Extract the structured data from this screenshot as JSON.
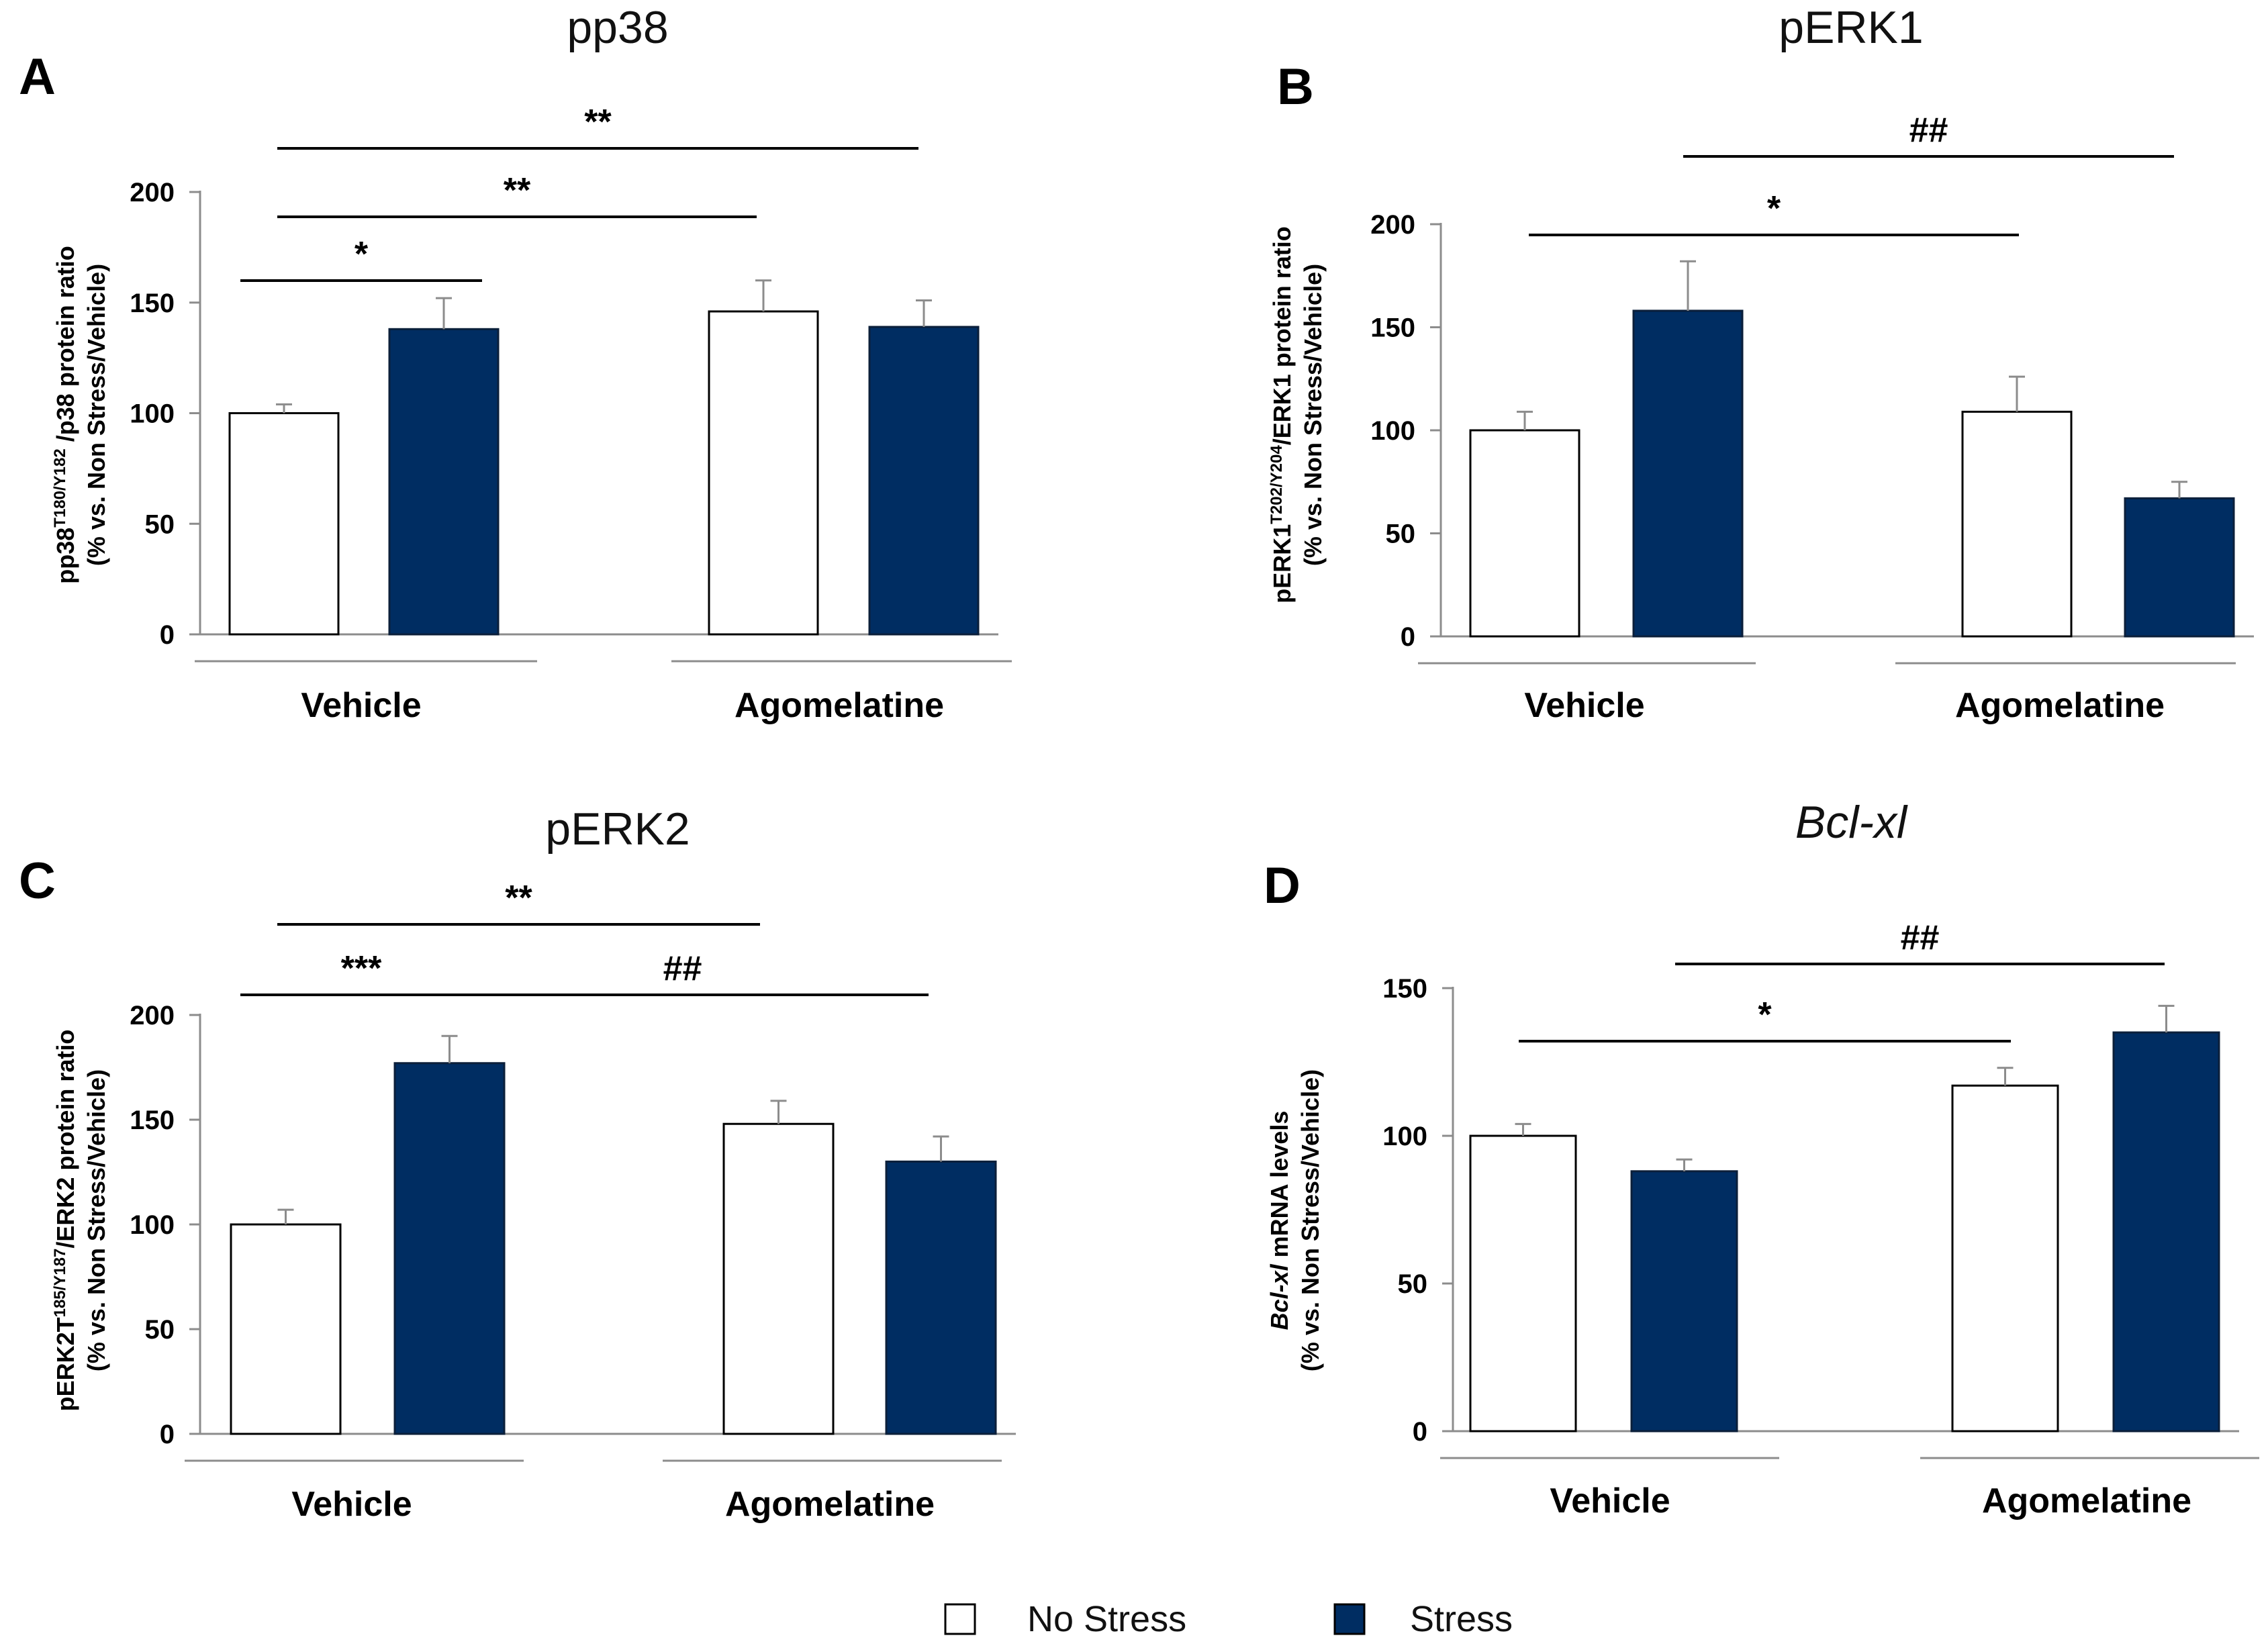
{
  "legend": {
    "items": [
      {
        "label": "No Stress",
        "color": "#ffffff"
      },
      {
        "label": "Stress",
        "color": "#002d62"
      }
    ]
  },
  "chart_data": [
    {
      "type": "bar",
      "letter": "A",
      "title": "pp38",
      "title_italic": false,
      "ylabel_line1_parts": [
        {
          "text": "pp38",
          "sup": false
        },
        {
          "text": "T180/Y182",
          "sup": true
        },
        {
          "text": " /p38 protein ratio",
          "sup": false
        }
      ],
      "ylabel_line2": "(% vs. Non Stress/Vehicle)",
      "categories": [
        "Vehicle",
        "Agomelatine"
      ],
      "series": [
        {
          "name": "No Stress",
          "values": [
            100,
            146
          ],
          "errors": [
            4,
            14
          ]
        },
        {
          "name": "Stress",
          "values": [
            138,
            139
          ],
          "errors": [
            14,
            12
          ]
        }
      ],
      "ylim": [
        0,
        200
      ],
      "yticks": [
        0,
        50,
        100,
        150,
        200
      ],
      "annotations": [
        {
          "label": "*",
          "from_group": 0,
          "from_series": 0,
          "to_group": 0,
          "to_series": 1,
          "level": 1
        },
        {
          "label": "**",
          "from_group": 0,
          "from_series": 0,
          "to_group": 1,
          "to_series": 0,
          "level": 2
        },
        {
          "label": "**",
          "from_group": 0,
          "from_series": 0,
          "to_group": 1,
          "to_series": 1,
          "level": 3
        }
      ]
    },
    {
      "type": "bar",
      "letter": "B",
      "title": "pERK1",
      "title_italic": false,
      "ylabel_line1_parts": [
        {
          "text": "pERK1",
          "sup": false
        },
        {
          "text": "T202/Y204",
          "sup": true
        },
        {
          "text": "/ERK1 protein  ratio",
          "sup": false
        }
      ],
      "ylabel_line2": "(% vs. Non Stress/Vehicle)",
      "categories": [
        "Vehicle",
        "Agomelatine"
      ],
      "series": [
        {
          "name": "No Stress",
          "values": [
            100,
            109
          ],
          "errors": [
            9,
            17
          ]
        },
        {
          "name": "Stress",
          "values": [
            158,
            67
          ],
          "errors": [
            24,
            8
          ]
        }
      ],
      "ylim": [
        0,
        200
      ],
      "yticks": [
        0,
        50,
        100,
        150,
        200
      ],
      "annotations": [
        {
          "label": "*",
          "from_group": 0,
          "from_series": 0,
          "to_group": 1,
          "to_series": 0,
          "level": 1
        },
        {
          "label": "##",
          "from_group": 0,
          "from_series": 1,
          "to_group": 1,
          "to_series": 1,
          "level": 2
        }
      ]
    },
    {
      "type": "bar",
      "letter": "C",
      "title": "pERK2",
      "title_italic": false,
      "ylabel_line1_parts": [
        {
          "text": "pERK2T",
          "sup": false
        },
        {
          "text": "185/Y187",
          "sup": true
        },
        {
          "text": "/ERK2 protein ratio",
          "sup": false
        }
      ],
      "ylabel_line2": "(% vs. Non Stress/Vehicle)",
      "categories": [
        "Vehicle",
        "Agomelatine"
      ],
      "series": [
        {
          "name": "No Stress",
          "values": [
            100,
            148
          ],
          "errors": [
            7,
            11
          ]
        },
        {
          "name": "Stress",
          "values": [
            177,
            130
          ],
          "errors": [
            13,
            12
          ]
        }
      ],
      "ylim": [
        0,
        200
      ],
      "yticks": [
        0,
        50,
        100,
        150,
        200
      ],
      "annotations": [
        {
          "label": "***",
          "from_group": 0,
          "from_series": 0,
          "to_group": 0,
          "to_series": 1,
          "level": 1
        },
        {
          "label": "##",
          "from_group": 0,
          "from_series": 1,
          "to_group": 1,
          "to_series": 1,
          "level": 1
        },
        {
          "label": "**",
          "from_group": 0,
          "from_series": 0,
          "to_group": 1,
          "to_series": 0,
          "level": 2
        }
      ]
    },
    {
      "type": "bar",
      "letter": "D",
      "title": "Bcl-xl",
      "title_italic": true,
      "ylabel_line1_parts": [
        {
          "text": "Bcl-xl",
          "sup": false,
          "italic": true
        },
        {
          "text": " mRNA levels",
          "sup": false
        }
      ],
      "ylabel_line2": "(% vs. Non Stress/Vehicle)",
      "categories": [
        "Vehicle",
        "Agomelatine"
      ],
      "series": [
        {
          "name": "No Stress",
          "values": [
            100,
            117
          ],
          "errors": [
            4,
            6
          ]
        },
        {
          "name": "Stress",
          "values": [
            88,
            135
          ],
          "errors": [
            4,
            9
          ]
        }
      ],
      "ylim": [
        0,
        150
      ],
      "yticks": [
        0,
        50,
        100,
        150
      ],
      "annotations": [
        {
          "label": "*",
          "from_group": 0,
          "from_series": 0,
          "to_group": 1,
          "to_series": 0,
          "level": 1
        },
        {
          "label": "##",
          "from_group": 0,
          "from_series": 1,
          "to_group": 1,
          "to_series": 1,
          "level": 2
        }
      ]
    }
  ]
}
